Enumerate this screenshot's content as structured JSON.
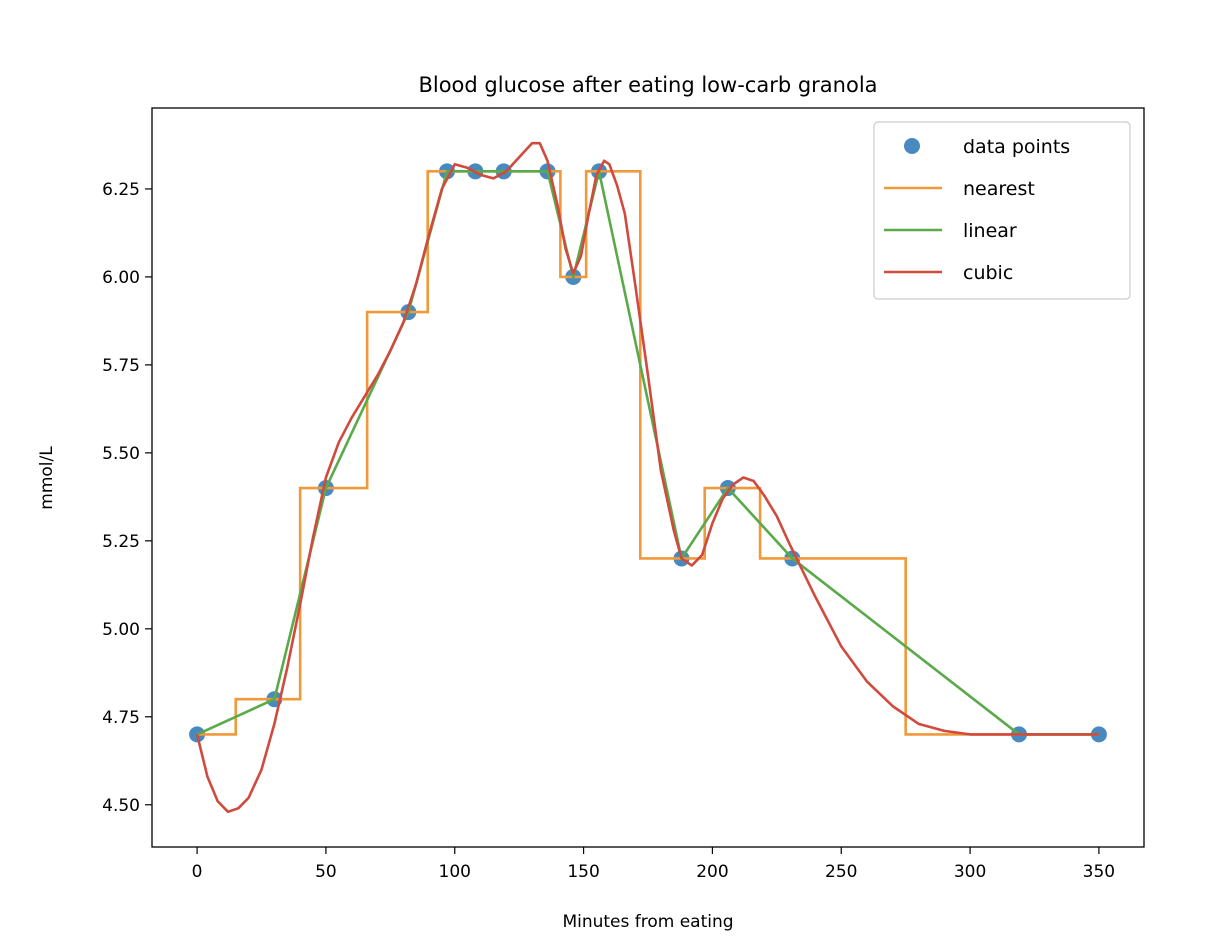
{
  "chart_data": {
    "type": "line",
    "title": "Blood glucose after eating low-carb granola",
    "xlabel": "Minutes from eating",
    "ylabel": "mmol/L",
    "xlim": [
      -17.5,
      367.5
    ],
    "ylim": [
      4.38,
      6.48
    ],
    "x_ticks": [
      0,
      50,
      100,
      150,
      200,
      250,
      300,
      350
    ],
    "x_tick_labels": [
      "0",
      "50",
      "100",
      "150",
      "200",
      "250",
      "300",
      "350"
    ],
    "y_ticks": [
      4.5,
      4.75,
      5.0,
      5.25,
      5.5,
      5.75,
      6.0,
      6.25
    ],
    "y_tick_labels": [
      "4.50",
      "4.75",
      "5.00",
      "5.25",
      "5.50",
      "5.75",
      "6.00",
      "6.25"
    ],
    "grid": false,
    "legend": {
      "position": "top-right",
      "entries": [
        "data points",
        "nearest",
        "linear",
        "cubic"
      ]
    },
    "data_points": {
      "name": "data points",
      "color": "#4889c0",
      "x": [
        0,
        30,
        50,
        82,
        97,
        108,
        119,
        136,
        146,
        156,
        188,
        206,
        231,
        319,
        350
      ],
      "y": [
        4.7,
        4.8,
        5.4,
        5.9,
        6.3,
        6.3,
        6.3,
        6.3,
        6.0,
        6.3,
        5.2,
        5.4,
        5.2,
        4.7,
        4.7
      ]
    },
    "series": [
      {
        "name": "nearest",
        "color": "#f0993a",
        "interpolation": "nearest"
      },
      {
        "name": "linear",
        "color": "#5aaa4a",
        "interpolation": "linear"
      },
      {
        "name": "cubic",
        "color": "#d04a3e",
        "interpolation": "cubic",
        "x": [
          0,
          4,
          8,
          12,
          16,
          20,
          25,
          30,
          35,
          40,
          45,
          50,
          55,
          60,
          65,
          70,
          75,
          80,
          85,
          90,
          95,
          100,
          105,
          110,
          115,
          120,
          125,
          130,
          133,
          136,
          140,
          143,
          146,
          149,
          152,
          155,
          158,
          160,
          163,
          166,
          170,
          175,
          180,
          185,
          188,
          192,
          196,
          200,
          204,
          208,
          212,
          216,
          220,
          225,
          230,
          240,
          250,
          260,
          270,
          280,
          290,
          300,
          310,
          319,
          330,
          340,
          350
        ],
        "y": [
          4.7,
          4.58,
          4.51,
          4.48,
          4.49,
          4.52,
          4.6,
          4.73,
          4.89,
          5.07,
          5.26,
          5.43,
          5.53,
          5.6,
          5.66,
          5.72,
          5.79,
          5.87,
          5.98,
          6.12,
          6.25,
          6.32,
          6.31,
          6.29,
          6.28,
          6.3,
          6.34,
          6.38,
          6.38,
          6.33,
          6.2,
          6.08,
          6.01,
          6.06,
          6.18,
          6.29,
          6.33,
          6.32,
          6.26,
          6.18,
          5.98,
          5.72,
          5.45,
          5.28,
          5.2,
          5.18,
          5.21,
          5.3,
          5.37,
          5.41,
          5.43,
          5.42,
          5.38,
          5.32,
          5.24,
          5.09,
          4.95,
          4.85,
          4.78,
          4.73,
          4.71,
          4.7,
          4.7,
          4.7,
          4.7,
          4.7,
          4.7
        ]
      }
    ]
  }
}
